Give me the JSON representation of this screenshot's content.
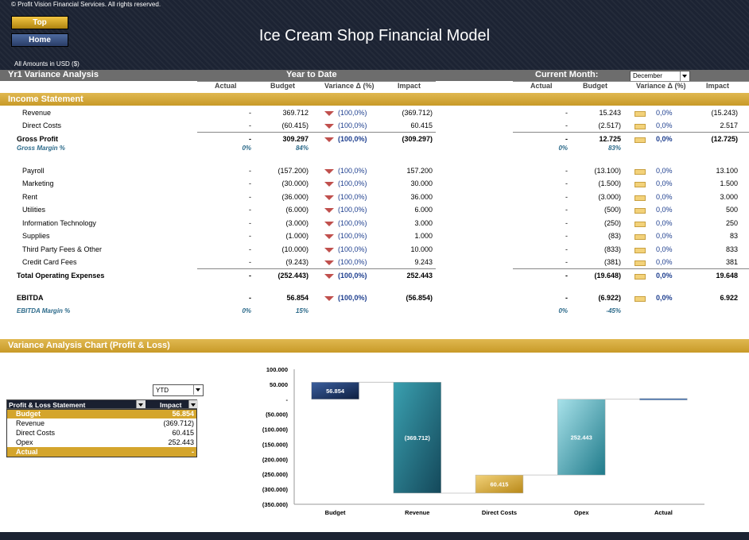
{
  "header": {
    "copyright": "© Profit Vision Financial Services. All rights reserved.",
    "top_button": "Top",
    "home_button": "Home",
    "title": "Ice Cream Shop Financial Model",
    "amounts": "All Amounts in  USD ($)"
  },
  "analysis": {
    "title": "Yr1 Variance Analysis",
    "ytd_label": "Year to Date",
    "cm_label": "Current Month:",
    "month": "December",
    "cols": {
      "actual": "Actual",
      "budget": "Budget",
      "variance": "Variance Δ  (%)",
      "impact": "Impact"
    }
  },
  "income_statement": {
    "title": "Income Statement",
    "rows": [
      {
        "label": "Revenue",
        "ytd_actual": "-",
        "ytd_budget": "369.712",
        "ytd_var": "(100,0%)",
        "ytd_impact": "(369.712)",
        "cm_actual": "-",
        "cm_budget": "15.243",
        "cm_var": "0,0%",
        "cm_impact": "(15.243)"
      },
      {
        "label": "Direct Costs",
        "ytd_actual": "-",
        "ytd_budget": "(60.415)",
        "ytd_var": "(100,0%)",
        "ytd_impact": "60.415",
        "cm_actual": "-",
        "cm_budget": "(2.517)",
        "cm_var": "0,0%",
        "cm_impact": "2.517"
      },
      {
        "label": "Gross Profit",
        "ytd_actual": "-",
        "ytd_budget": "309.297",
        "ytd_var": "(100,0%)",
        "ytd_impact": "(309.297)",
        "cm_actual": "-",
        "cm_budget": "12.725",
        "cm_var": "0,0%",
        "cm_impact": "(12.725)"
      },
      {
        "label": "Payroll",
        "ytd_actual": "-",
        "ytd_budget": "(157.200)",
        "ytd_var": "(100,0%)",
        "ytd_impact": "157.200",
        "cm_actual": "-",
        "cm_budget": "(13.100)",
        "cm_var": "0,0%",
        "cm_impact": "13.100"
      },
      {
        "label": "Marketing",
        "ytd_actual": "-",
        "ytd_budget": "(30.000)",
        "ytd_var": "(100,0%)",
        "ytd_impact": "30.000",
        "cm_actual": "-",
        "cm_budget": "(1.500)",
        "cm_var": "0,0%",
        "cm_impact": "1.500"
      },
      {
        "label": "Rent",
        "ytd_actual": "-",
        "ytd_budget": "(36.000)",
        "ytd_var": "(100,0%)",
        "ytd_impact": "36.000",
        "cm_actual": "-",
        "cm_budget": "(3.000)",
        "cm_var": "0,0%",
        "cm_impact": "3.000"
      },
      {
        "label": "Utilities",
        "ytd_actual": "-",
        "ytd_budget": "(6.000)",
        "ytd_var": "(100,0%)",
        "ytd_impact": "6.000",
        "cm_actual": "-",
        "cm_budget": "(500)",
        "cm_var": "0,0%",
        "cm_impact": "500"
      },
      {
        "label": "Information Technology",
        "ytd_actual": "-",
        "ytd_budget": "(3.000)",
        "ytd_var": "(100,0%)",
        "ytd_impact": "3.000",
        "cm_actual": "-",
        "cm_budget": "(250)",
        "cm_var": "0,0%",
        "cm_impact": "250"
      },
      {
        "label": "Supplies",
        "ytd_actual": "-",
        "ytd_budget": "(1.000)",
        "ytd_var": "(100,0%)",
        "ytd_impact": "1.000",
        "cm_actual": "-",
        "cm_budget": "(83)",
        "cm_var": "0,0%",
        "cm_impact": "83"
      },
      {
        "label": "Third Party Fees & Other",
        "ytd_actual": "-",
        "ytd_budget": "(10.000)",
        "ytd_var": "(100,0%)",
        "ytd_impact": "10.000",
        "cm_actual": "-",
        "cm_budget": "(833)",
        "cm_var": "0,0%",
        "cm_impact": "833"
      },
      {
        "label": "Credit Card Fees",
        "ytd_actual": "-",
        "ytd_budget": "(9.243)",
        "ytd_var": "(100,0%)",
        "ytd_impact": "9.243",
        "cm_actual": "-",
        "cm_budget": "(381)",
        "cm_var": "0,0%",
        "cm_impact": "381"
      },
      {
        "label": "Total Operating Expenses",
        "ytd_actual": "-",
        "ytd_budget": "(252.443)",
        "ytd_var": "(100,0%)",
        "ytd_impact": "252.443",
        "cm_actual": "-",
        "cm_budget": "(19.648)",
        "cm_var": "0,0%",
        "cm_impact": "19.648"
      },
      {
        "label": "EBITDA",
        "ytd_actual": "-",
        "ytd_budget": "56.854",
        "ytd_var": "(100,0%)",
        "ytd_impact": "(56.854)",
        "cm_actual": "-",
        "cm_budget": "(6.922)",
        "cm_var": "0,0%",
        "cm_impact": "6.922"
      }
    ],
    "gross_margin": {
      "label": "Gross Margin %",
      "ytd_actual": "0%",
      "ytd_budget": "84%",
      "cm_actual": "0%",
      "cm_budget": "83%"
    },
    "ebitda_margin": {
      "label": "EBITDA Margin %",
      "ytd_actual": "0%",
      "ytd_budget": "15%",
      "cm_actual": "0%",
      "cm_budget": "-45%"
    }
  },
  "chart_section": {
    "title": "Variance Analysis Chart (Profit & Loss)",
    "period": "YTD",
    "table_header": {
      "statement": "Profit & Loss Statement",
      "impact": "Impact"
    },
    "table_rows": [
      {
        "label": "Budget",
        "value": "56.854"
      },
      {
        "label": "Revenue",
        "value": "(369.712)"
      },
      {
        "label": "Direct Costs",
        "value": "60.415"
      },
      {
        "label": "Opex",
        "value": "252.443"
      },
      {
        "label": "Actual",
        "value": "-"
      }
    ]
  },
  "chart_data": {
    "type": "bar",
    "subtype": "waterfall",
    "categories": [
      "Budget",
      "Revenue",
      "Direct Costs",
      "Opex",
      "Actual"
    ],
    "steps": [
      56854,
      -369712,
      60415,
      252443,
      0
    ],
    "bar_labels": [
      "56.854",
      "(369.712)",
      "60.415",
      "252.443",
      ""
    ],
    "ylim": [
      -350000,
      100000
    ],
    "yticks": [
      100000,
      50000,
      0,
      -50000,
      -100000,
      -150000,
      -200000,
      -250000,
      -300000,
      -350000
    ],
    "ytick_labels": [
      "100.000",
      "50.000",
      "-",
      "(50.000)",
      "(100.000)",
      "(150.000)",
      "(200.000)",
      "(250.000)",
      "(300.000)",
      "(350.000)"
    ],
    "colors": {
      "budget": "#1f3b6e",
      "revenue": "#1f7080",
      "direct_costs": "#c89a28",
      "opex": "#2a8a9a",
      "actual": "#4b79b5"
    }
  }
}
